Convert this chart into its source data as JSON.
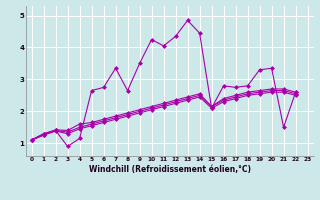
{
  "xlabel": "Windchill (Refroidissement éolien,°C)",
  "bg_color": "#cce8e8",
  "grid_color": "#ffffff",
  "line_color": "#aa00aa",
  "xlim": [
    -0.5,
    23.5
  ],
  "ylim": [
    0.6,
    5.3
  ],
  "xticks": [
    0,
    1,
    2,
    3,
    4,
    5,
    6,
    7,
    8,
    9,
    10,
    11,
    12,
    13,
    14,
    15,
    16,
    17,
    18,
    19,
    20,
    21,
    22,
    23
  ],
  "yticks": [
    1,
    2,
    3,
    4,
    5
  ],
  "series": [
    [
      1.1,
      1.3,
      1.4,
      0.9,
      1.15,
      2.65,
      2.75,
      3.35,
      2.65,
      3.5,
      4.25,
      4.05,
      4.35,
      4.85,
      4.45,
      2.1,
      2.8,
      2.75,
      2.8,
      3.3,
      3.35,
      1.5,
      2.6
    ],
    [
      1.1,
      1.25,
      1.38,
      1.3,
      1.45,
      1.55,
      1.65,
      1.75,
      1.85,
      1.95,
      2.05,
      2.15,
      2.25,
      2.35,
      2.45,
      2.1,
      2.3,
      2.4,
      2.5,
      2.55,
      2.6,
      2.6,
      2.5
    ],
    [
      1.1,
      1.27,
      1.4,
      1.35,
      1.5,
      1.6,
      1.7,
      1.8,
      1.9,
      2.0,
      2.1,
      2.2,
      2.3,
      2.4,
      2.5,
      2.15,
      2.35,
      2.45,
      2.55,
      2.6,
      2.65,
      2.65,
      2.55
    ],
    [
      1.1,
      1.29,
      1.42,
      1.4,
      1.6,
      1.65,
      1.75,
      1.85,
      1.95,
      2.05,
      2.15,
      2.25,
      2.35,
      2.45,
      2.55,
      2.15,
      2.4,
      2.5,
      2.6,
      2.65,
      2.7,
      2.7,
      2.6
    ]
  ],
  "x_values": [
    0,
    1,
    2,
    3,
    4,
    5,
    6,
    7,
    8,
    9,
    10,
    11,
    12,
    13,
    14,
    15,
    16,
    17,
    18,
    19,
    20,
    21,
    22
  ]
}
